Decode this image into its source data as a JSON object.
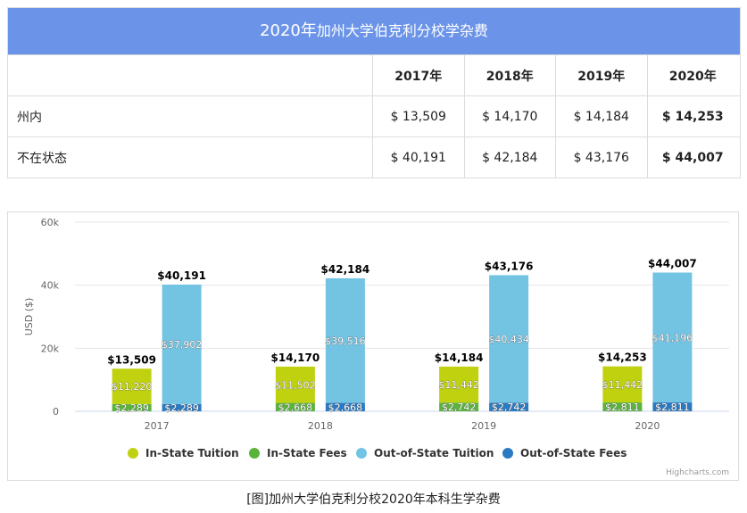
{
  "table": {
    "title_main": "2020年",
    "title_rest": "加州大学伯克利分校学杂费",
    "headers": [
      "2017年",
      "2018年",
      "2019年",
      "2020年"
    ],
    "rows": [
      {
        "label": "州内",
        "values": [
          "$ 13,509",
          "$ 14,170",
          "$ 14,184",
          "$ 14,253"
        ]
      },
      {
        "label": "不在状态",
        "values": [
          "$ 40,191",
          "$ 42,184",
          "$ 43,176",
          "$ 44,007"
        ]
      }
    ]
  },
  "chart_data": {
    "type": "bar",
    "stacked": true,
    "categories": [
      "2017",
      "2018",
      "2019",
      "2020"
    ],
    "ylabel": "USD ($)",
    "ylim": [
      0,
      60000
    ],
    "yticks": [
      "0",
      "20k",
      "40k",
      "60k"
    ],
    "ytick_values": [
      0,
      20000,
      40000,
      60000
    ],
    "grid": true,
    "legend_position": "bottom",
    "stacks": [
      {
        "name": "In-State",
        "totals": [
          13509,
          14170,
          14184,
          14253
        ],
        "total_labels": [
          "$13,509",
          "$14,170",
          "$14,184",
          "$14,253"
        ]
      },
      {
        "name": "Out-of-State",
        "totals": [
          40191,
          42184,
          43176,
          44007
        ],
        "total_labels": [
          "$40,191",
          "$42,184",
          "$43,176",
          "$44,007"
        ]
      }
    ],
    "series": [
      {
        "name": "In-State Tuition",
        "stack": 0,
        "color": "#c0d10f",
        "values": [
          11220,
          11502,
          11442,
          11442
        ],
        "labels": [
          "$11,220",
          "$11,502",
          "$11,442",
          "$11,442"
        ]
      },
      {
        "name": "In-State Fees",
        "stack": 0,
        "color": "#5ab43c",
        "values": [
          2289,
          2668,
          2742,
          2811
        ],
        "labels": [
          "$2,289",
          "$2,668",
          "$2,742",
          "$2,811"
        ]
      },
      {
        "name": "Out-of-State Tuition",
        "stack": 1,
        "color": "#73c3e3",
        "values": [
          37902,
          39516,
          40434,
          41196
        ],
        "labels": [
          "$37,902",
          "$39,516",
          "$40,434",
          "$41,196"
        ]
      },
      {
        "name": "Out-of-State Fees",
        "stack": 1,
        "color": "#2a7ac2",
        "values": [
          2289,
          2668,
          2742,
          2811
        ],
        "labels": [
          "$2,289",
          "$2,668",
          "$2,742",
          "$2,811"
        ]
      }
    ],
    "credit": "Highcharts.com"
  },
  "caption": "[图]加州大学伯克利分校2020年本科生学杂费"
}
